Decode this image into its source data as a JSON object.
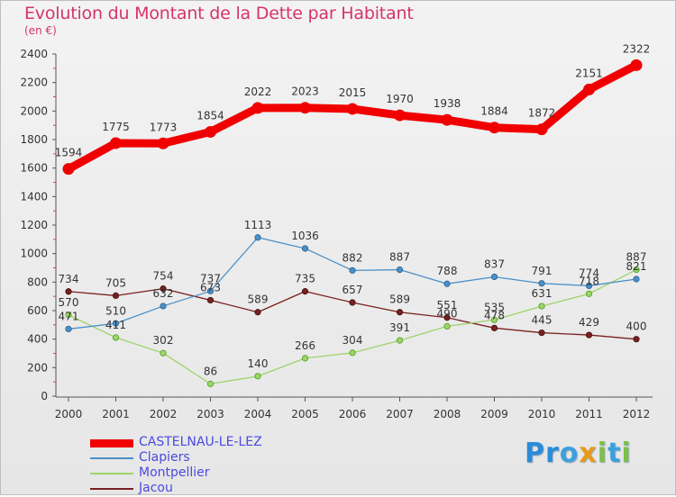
{
  "title": "Evolution du Montant de la Dette par Habitant",
  "subtitle": "(en €)",
  "logo": "Proxiti",
  "chart_data": {
    "type": "line",
    "x": [
      2000,
      2001,
      2002,
      2003,
      2004,
      2005,
      2006,
      2007,
      2008,
      2009,
      2010,
      2011,
      2012
    ],
    "xlabels": [
      "2000",
      "2001",
      "2002",
      "2003",
      "2004",
      "2005",
      "2006",
      "2007",
      "2008",
      "2009",
      "2010",
      "2011",
      "2012"
    ],
    "ylim": [
      0,
      2400
    ],
    "yticks": [
      0,
      200,
      400,
      600,
      800,
      1000,
      1200,
      1400,
      1600,
      1800,
      2000,
      2200,
      2400
    ],
    "grid": false,
    "legend_position": "bottom-left",
    "series": [
      {
        "name": "Jacou",
        "color": "#7a2020",
        "values": [
          734,
          705,
          754,
          673,
          589,
          735,
          657,
          589,
          551,
          478,
          445,
          429,
          400
        ]
      },
      {
        "name": "Montpellier",
        "color": "#9ed36a",
        "values": [
          570,
          411,
          302,
          86,
          140,
          266,
          304,
          391,
          490,
          535,
          631,
          718,
          887
        ]
      },
      {
        "name": "Clapiers",
        "color": "#4a90c8",
        "values": [
          471,
          510,
          632,
          737,
          1113,
          1036,
          882,
          887,
          788,
          837,
          791,
          774,
          821
        ]
      },
      {
        "name": "CASTELNAU-LE-LEZ",
        "color": "#f00000",
        "values": [
          1594,
          1775,
          1773,
          1854,
          2022,
          2023,
          2015,
          1970,
          1938,
          1884,
          1872,
          2151,
          2322
        ]
      }
    ],
    "legend_order": [
      "CASTELNAU-LE-LEZ",
      "Clapiers",
      "Montpellier",
      "Jacou"
    ],
    "legend_label_color": "#4a4ae0"
  }
}
